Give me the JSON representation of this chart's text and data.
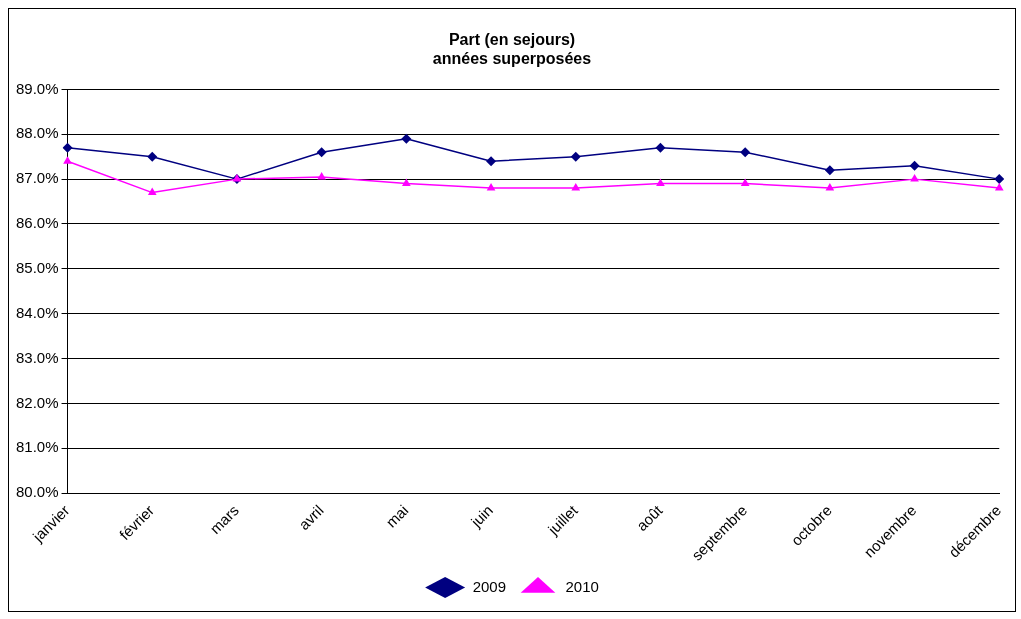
{
  "chart_data": {
    "type": "line",
    "title": [
      "Part (en sejours)",
      "années superposées"
    ],
    "categories": [
      "janvier",
      "février",
      "mars",
      "avril",
      "mai",
      "juin",
      "juillet",
      "août",
      "septembre",
      "octobre",
      "novembre",
      "décembre"
    ],
    "series": [
      {
        "name": "2009",
        "color": "#000080",
        "marker": "diamond",
        "values": [
          87.7,
          87.5,
          87.0,
          87.6,
          87.9,
          87.4,
          87.5,
          87.7,
          87.6,
          87.2,
          87.3,
          87.0
        ]
      },
      {
        "name": "2010",
        "color": "#ff00ff",
        "marker": "triangle",
        "values": [
          87.4,
          86.7,
          87.0,
          87.05,
          86.9,
          86.8,
          86.8,
          86.9,
          86.9,
          86.8,
          87.0,
          86.8
        ]
      }
    ],
    "ylim": [
      80,
      89
    ],
    "yticks": [
      {
        "value": 80,
        "label": "80.0%"
      },
      {
        "value": 81,
        "label": "81.0%"
      },
      {
        "value": 82,
        "label": "82.0%"
      },
      {
        "value": 83,
        "label": "83.0%"
      },
      {
        "value": 84,
        "label": "84.0%"
      },
      {
        "value": 85,
        "label": "85.0%"
      },
      {
        "value": 86,
        "label": "86.0%"
      },
      {
        "value": 87,
        "label": "87.0%"
      },
      {
        "value": 88,
        "label": "88.0%"
      },
      {
        "value": 89,
        "label": "89.0%"
      }
    ],
    "grid": "y",
    "legend": "bottom",
    "line_style": "solid"
  }
}
